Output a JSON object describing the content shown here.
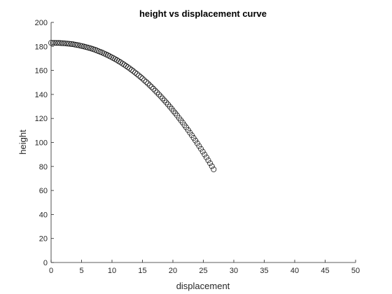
{
  "chart_data": {
    "type": "scatter",
    "title": "height vs displacement curve",
    "xlabel": "displacement",
    "ylabel": "height",
    "xlim": [
      0,
      50
    ],
    "ylim": [
      0,
      200
    ],
    "xticks": [
      0,
      5,
      10,
      15,
      20,
      25,
      30,
      35,
      40,
      45,
      50
    ],
    "yticks": [
      0,
      20,
      40,
      60,
      80,
      100,
      120,
      140,
      160,
      180,
      200
    ],
    "grid": false,
    "legend": "none",
    "marker": "circle-open",
    "color": "#000000",
    "series": [
      {
        "x": [
          0.0,
          0.3,
          0.6,
          0.9,
          1.2,
          1.5,
          1.8,
          2.1,
          2.4,
          2.7,
          3.0,
          3.3,
          3.6,
          3.9,
          4.2,
          4.5,
          4.8,
          5.1,
          5.4,
          5.7,
          6.0,
          6.3,
          6.6,
          6.9,
          7.2,
          7.5,
          7.8,
          8.1,
          8.4,
          8.7,
          9.0,
          9.3,
          9.6,
          9.9,
          10.2,
          10.5,
          10.8,
          11.1,
          11.4,
          11.7,
          12.0,
          12.3,
          12.6,
          12.9,
          13.2,
          13.5,
          13.8,
          14.1,
          14.4,
          14.7,
          15.0,
          15.3,
          15.6,
          15.9,
          16.2,
          16.5,
          16.8,
          17.1,
          17.4,
          17.7,
          18.0,
          18.3,
          18.6,
          18.9,
          19.2,
          19.5,
          19.8,
          20.1,
          20.4,
          20.7,
          21.0,
          21.3,
          21.6,
          21.9,
          22.2,
          22.5,
          22.8,
          23.1,
          23.4,
          23.7,
          24.0,
          24.3,
          24.6,
          24.9,
          25.2,
          25.5,
          25.8,
          26.1,
          26.4,
          26.7
        ],
        "y": [
          183.0,
          183.0,
          183.0,
          182.9,
          182.9,
          182.8,
          182.7,
          182.6,
          182.5,
          182.3,
          182.2,
          182.0,
          181.8,
          181.5,
          181.2,
          181.0,
          180.6,
          180.3,
          179.9,
          179.5,
          179.1,
          178.7,
          178.2,
          177.7,
          177.2,
          176.6,
          176.0,
          175.4,
          174.8,
          174.1,
          173.4,
          172.7,
          171.9,
          171.1,
          170.3,
          169.5,
          168.6,
          167.7,
          166.8,
          165.8,
          164.8,
          163.8,
          162.7,
          161.7,
          160.5,
          159.4,
          158.2,
          157.0,
          155.8,
          154.5,
          153.2,
          151.8,
          150.5,
          149.1,
          147.6,
          146.2,
          144.7,
          143.1,
          141.6,
          140.0,
          138.4,
          136.7,
          135.0,
          133.3,
          131.6,
          129.8,
          128.0,
          126.1,
          124.3,
          122.4,
          120.4,
          118.5,
          116.5,
          114.4,
          112.4,
          110.3,
          108.1,
          106.0,
          103.8,
          101.6,
          99.3,
          97.0,
          94.7,
          92.4,
          90.0,
          87.6,
          85.1,
          82.7,
          80.2,
          77.6
        ]
      }
    ]
  }
}
